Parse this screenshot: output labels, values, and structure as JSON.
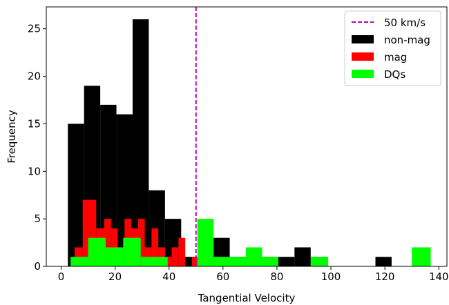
{
  "chart_data": {
    "type": "histogram",
    "xlabel": "Tangential Velocity",
    "ylabel": "Frequency",
    "xlim": [
      -5.5,
      143
    ],
    "ylim": [
      0,
      27.3
    ],
    "xticks": [
      0,
      20,
      40,
      60,
      80,
      100,
      120,
      140
    ],
    "yticks": [
      0,
      5,
      10,
      15,
      20,
      25
    ],
    "grid": false,
    "legend_position": "top-right",
    "vline": {
      "x": 50,
      "label": "50 km/s",
      "color": "#bf00bf",
      "style": "dashed"
    },
    "series": [
      {
        "name": "non-mag",
        "color": "#000000",
        "bins": [
          [
            2.5,
            8.5,
            15
          ],
          [
            8.5,
            14.5,
            19
          ],
          [
            14.5,
            20.5,
            17
          ],
          [
            20.5,
            26.5,
            16
          ],
          [
            26.5,
            32.5,
            26
          ],
          [
            32.5,
            38.5,
            8
          ],
          [
            38.5,
            44.5,
            5
          ],
          [
            44.5,
            50.5,
            1
          ],
          [
            56.5,
            62.5,
            3
          ],
          [
            62.5,
            68.5,
            1
          ],
          [
            68.5,
            74.5,
            1
          ],
          [
            74.5,
            80.5,
            1
          ],
          [
            80.5,
            86.5,
            1
          ],
          [
            86.5,
            92.5,
            2
          ],
          [
            92.5,
            98.5,
            1
          ],
          [
            116.5,
            122.5,
            1
          ]
        ]
      },
      {
        "name": "mag",
        "color": "#ff0000",
        "bins": [
          [
            5,
            8,
            2
          ],
          [
            8,
            13,
            7
          ],
          [
            13,
            16,
            4
          ],
          [
            16,
            18.5,
            5
          ],
          [
            18.5,
            21,
            4
          ],
          [
            21,
            23.5,
            2
          ],
          [
            23.5,
            26,
            5
          ],
          [
            26,
            28.5,
            4
          ],
          [
            28.5,
            31,
            5
          ],
          [
            31,
            33.5,
            2
          ],
          [
            33.5,
            36,
            4
          ],
          [
            36,
            38.5,
            2
          ],
          [
            38.5,
            41,
            1
          ],
          [
            41,
            43.5,
            2
          ],
          [
            43.5,
            46,
            3
          ],
          [
            48.5,
            51,
            1
          ]
        ]
      },
      {
        "name": "DQs",
        "color": "#00ff00",
        "bins": [
          [
            3.5,
            10,
            1
          ],
          [
            10,
            16.5,
            3
          ],
          [
            16.5,
            23,
            2
          ],
          [
            23,
            29.5,
            3
          ],
          [
            29.5,
            36,
            1
          ],
          [
            36,
            39.5,
            1
          ],
          [
            50.5,
            56.5,
            5
          ],
          [
            56.5,
            62.5,
            1
          ],
          [
            62.5,
            68.5,
            1
          ],
          [
            68.5,
            74.5,
            2
          ],
          [
            74.5,
            80.5,
            1
          ],
          [
            92.5,
            99,
            1
          ],
          [
            130,
            137,
            2
          ]
        ]
      }
    ]
  }
}
